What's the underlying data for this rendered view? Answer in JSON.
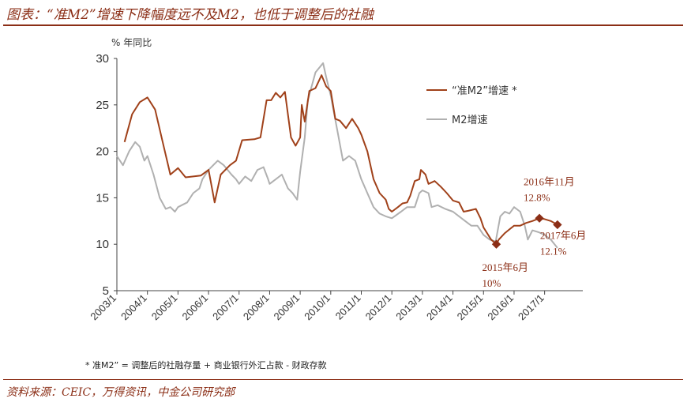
{
  "header": {
    "title": "图表：“准M2”增速下降幅度远不及M2，也低于调整后的社融"
  },
  "footnote": "* 准M2”  = 调整后的社融存量 + 商业银行外汇占款 - 财政存款",
  "source": "资料来源：CEIC，万得资讯，中金公司研究部",
  "colors": {
    "quasi_m2": "#a0411a",
    "m2": "#b0b0b0",
    "accent": "#8b2e16"
  },
  "chart_data": {
    "type": "line",
    "ylabel": "% 年同比",
    "ylim": [
      5,
      30
    ],
    "yticks": [
      "5",
      "10",
      "15",
      "20",
      "25",
      "30"
    ],
    "xlim": [
      2003.0,
      2018.25
    ],
    "xticks": [
      "2003/1",
      "2004/1",
      "2005/1",
      "2006/1",
      "2007/1",
      "2008/1",
      "2009/1",
      "2010/1",
      "2011/1",
      "2012/1",
      "2013/1",
      "2014/1",
      "2015/1",
      "2016/1",
      "2017/1"
    ],
    "grid": false,
    "legend_position": "top-right",
    "series": [
      {
        "name": "“准M2”增速 *",
        "points": [
          [
            2003.25,
            21.0
          ],
          [
            2003.5,
            24.0
          ],
          [
            2003.75,
            25.3
          ],
          [
            2004.0,
            25.8
          ],
          [
            2004.25,
            24.5
          ],
          [
            2004.5,
            21.0
          ],
          [
            2004.75,
            17.5
          ],
          [
            2005.0,
            18.2
          ],
          [
            2005.25,
            17.2
          ],
          [
            2005.5,
            17.3
          ],
          [
            2005.75,
            17.4
          ],
          [
            2006.0,
            18.0
          ],
          [
            2006.2,
            14.5
          ],
          [
            2006.4,
            17.5
          ],
          [
            2006.7,
            18.5
          ],
          [
            2006.9,
            19.0
          ],
          [
            2007.1,
            21.2
          ],
          [
            2007.5,
            21.3
          ],
          [
            2007.7,
            21.5
          ],
          [
            2007.9,
            25.5
          ],
          [
            2008.05,
            25.5
          ],
          [
            2008.2,
            26.3
          ],
          [
            2008.35,
            25.8
          ],
          [
            2008.5,
            26.4
          ],
          [
            2008.7,
            21.5
          ],
          [
            2008.85,
            20.6
          ],
          [
            2009.0,
            21.5
          ],
          [
            2009.05,
            25.0
          ],
          [
            2009.15,
            23.2
          ],
          [
            2009.3,
            26.5
          ],
          [
            2009.5,
            26.8
          ],
          [
            2009.7,
            28.2
          ],
          [
            2009.85,
            27.0
          ],
          [
            2010.0,
            26.5
          ],
          [
            2010.15,
            23.5
          ],
          [
            2010.3,
            23.3
          ],
          [
            2010.5,
            22.5
          ],
          [
            2010.7,
            23.5
          ],
          [
            2010.9,
            22.5
          ],
          [
            2011.0,
            21.8
          ],
          [
            2011.2,
            20.0
          ],
          [
            2011.4,
            17.0
          ],
          [
            2011.6,
            15.5
          ],
          [
            2011.8,
            14.8
          ],
          [
            2011.9,
            13.8
          ],
          [
            2012.0,
            13.5
          ],
          [
            2012.2,
            14.0
          ],
          [
            2012.35,
            14.4
          ],
          [
            2012.5,
            14.5
          ],
          [
            2012.6,
            15.2
          ],
          [
            2012.75,
            16.8
          ],
          [
            2012.9,
            17.0
          ],
          [
            2012.95,
            18.0
          ],
          [
            2013.1,
            17.5
          ],
          [
            2013.2,
            16.5
          ],
          [
            2013.4,
            16.8
          ],
          [
            2013.6,
            16.2
          ],
          [
            2013.8,
            15.5
          ],
          [
            2014.0,
            14.7
          ],
          [
            2014.2,
            14.5
          ],
          [
            2014.35,
            13.5
          ],
          [
            2014.5,
            13.6
          ],
          [
            2014.75,
            13.8
          ],
          [
            2014.9,
            12.8
          ],
          [
            2015.0,
            11.8
          ],
          [
            2015.25,
            10.5
          ],
          [
            2015.42,
            10.0
          ],
          [
            2015.5,
            10.5
          ],
          [
            2015.7,
            11.2
          ],
          [
            2015.85,
            11.6
          ],
          [
            2016.0,
            12.0
          ],
          [
            2016.2,
            12.0
          ],
          [
            2016.4,
            12.3
          ],
          [
            2016.6,
            12.5
          ],
          [
            2016.83,
            12.8
          ],
          [
            2017.0,
            12.7
          ],
          [
            2017.2,
            12.5
          ],
          [
            2017.42,
            12.1
          ]
        ]
      },
      {
        "name": "M2增速",
        "points": [
          [
            2003.0,
            19.5
          ],
          [
            2003.2,
            18.5
          ],
          [
            2003.4,
            20.0
          ],
          [
            2003.6,
            21.0
          ],
          [
            2003.75,
            20.5
          ],
          [
            2003.9,
            19.0
          ],
          [
            2004.0,
            19.5
          ],
          [
            2004.2,
            17.5
          ],
          [
            2004.4,
            15.0
          ],
          [
            2004.6,
            13.8
          ],
          [
            2004.75,
            14.0
          ],
          [
            2004.9,
            13.5
          ],
          [
            2005.0,
            14.0
          ],
          [
            2005.3,
            14.5
          ],
          [
            2005.5,
            15.5
          ],
          [
            2005.7,
            16.0
          ],
          [
            2005.8,
            17.0
          ],
          [
            2006.0,
            18.0
          ],
          [
            2006.3,
            19.0
          ],
          [
            2006.5,
            18.5
          ],
          [
            2006.75,
            17.5
          ],
          [
            2006.9,
            17.0
          ],
          [
            2007.0,
            16.5
          ],
          [
            2007.2,
            17.3
          ],
          [
            2007.4,
            16.8
          ],
          [
            2007.6,
            18.0
          ],
          [
            2007.8,
            18.3
          ],
          [
            2007.95,
            17.0
          ],
          [
            2008.0,
            16.5
          ],
          [
            2008.2,
            17.0
          ],
          [
            2008.4,
            17.5
          ],
          [
            2008.6,
            16.0
          ],
          [
            2008.75,
            15.5
          ],
          [
            2008.9,
            14.8
          ],
          [
            2009.0,
            17.8
          ],
          [
            2009.15,
            21.5
          ],
          [
            2009.25,
            25.5
          ],
          [
            2009.5,
            28.5
          ],
          [
            2009.75,
            29.5
          ],
          [
            2009.85,
            28.0
          ],
          [
            2010.0,
            26.0
          ],
          [
            2010.2,
            22.5
          ],
          [
            2010.4,
            19.0
          ],
          [
            2010.6,
            19.5
          ],
          [
            2010.8,
            19.0
          ],
          [
            2011.0,
            17.0
          ],
          [
            2011.2,
            15.5
          ],
          [
            2011.4,
            14.0
          ],
          [
            2011.6,
            13.3
          ],
          [
            2011.8,
            13.0
          ],
          [
            2012.0,
            12.8
          ],
          [
            2012.3,
            13.5
          ],
          [
            2012.5,
            14.0
          ],
          [
            2012.75,
            14.0
          ],
          [
            2012.9,
            15.5
          ],
          [
            2013.0,
            15.8
          ],
          [
            2013.2,
            15.5
          ],
          [
            2013.3,
            14.0
          ],
          [
            2013.5,
            14.2
          ],
          [
            2013.75,
            13.8
          ],
          [
            2014.0,
            13.5
          ],
          [
            2014.2,
            13.0
          ],
          [
            2014.4,
            12.5
          ],
          [
            2014.6,
            12.0
          ],
          [
            2014.8,
            12.0
          ],
          [
            2015.0,
            11.0
          ],
          [
            2015.2,
            10.5
          ],
          [
            2015.4,
            10.3
          ],
          [
            2015.55,
            13.0
          ],
          [
            2015.7,
            13.5
          ],
          [
            2015.85,
            13.3
          ],
          [
            2016.0,
            14.0
          ],
          [
            2016.2,
            13.5
          ],
          [
            2016.35,
            12.0
          ],
          [
            2016.45,
            10.5
          ],
          [
            2016.6,
            11.5
          ],
          [
            2016.8,
            11.3
          ],
          [
            2017.0,
            11.0
          ],
          [
            2017.2,
            10.5
          ],
          [
            2017.42,
            9.6
          ]
        ]
      }
    ],
    "annotations": [
      {
        "x": 2015.42,
        "y": 10.0,
        "label1": "2015年6月",
        "label2": "10%"
      },
      {
        "x": 2016.83,
        "y": 12.8,
        "label1": "2016年11月",
        "label2": "12.8%"
      },
      {
        "x": 2017.42,
        "y": 12.1,
        "label1": "2017年6月",
        "label2": "12.1%"
      }
    ]
  }
}
